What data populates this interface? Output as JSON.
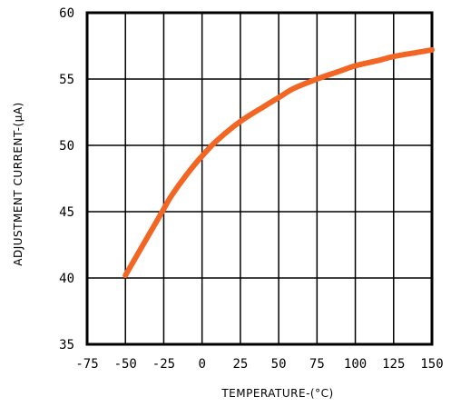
{
  "chart_data": {
    "type": "line",
    "title": "",
    "xlabel": "TEMPERATURE-(°C)",
    "ylabel": "ADJUSTMENT CURRENT-(μA)",
    "xlim": [
      -75,
      150
    ],
    "ylim": [
      35,
      60
    ],
    "x_ticks": [
      -75,
      -50,
      -25,
      0,
      25,
      50,
      75,
      100,
      125,
      150
    ],
    "x_tick_labels": [
      "-75",
      "-50",
      "-25",
      "0",
      "25",
      "50",
      "75",
      "100",
      "125",
      "150"
    ],
    "y_ticks": [
      35,
      40,
      45,
      50,
      55,
      60
    ],
    "y_tick_labels": [
      "35",
      "40",
      "45",
      "50",
      "55",
      "60"
    ],
    "grid": true,
    "legend": "none",
    "series": [
      {
        "color": "#f26522",
        "x": [
          -50,
          -40,
          -30,
          -25,
          -20,
          -10,
          0,
          10,
          25,
          40,
          50,
          60,
          75,
          90,
          100,
          115,
          125,
          140,
          150
        ],
        "y": [
          40.2,
          42.2,
          44.2,
          45.2,
          46.2,
          47.8,
          49.2,
          50.4,
          51.8,
          52.9,
          53.6,
          54.3,
          55.0,
          55.6,
          56.0,
          56.4,
          56.7,
          57.0,
          57.2
        ]
      }
    ]
  }
}
